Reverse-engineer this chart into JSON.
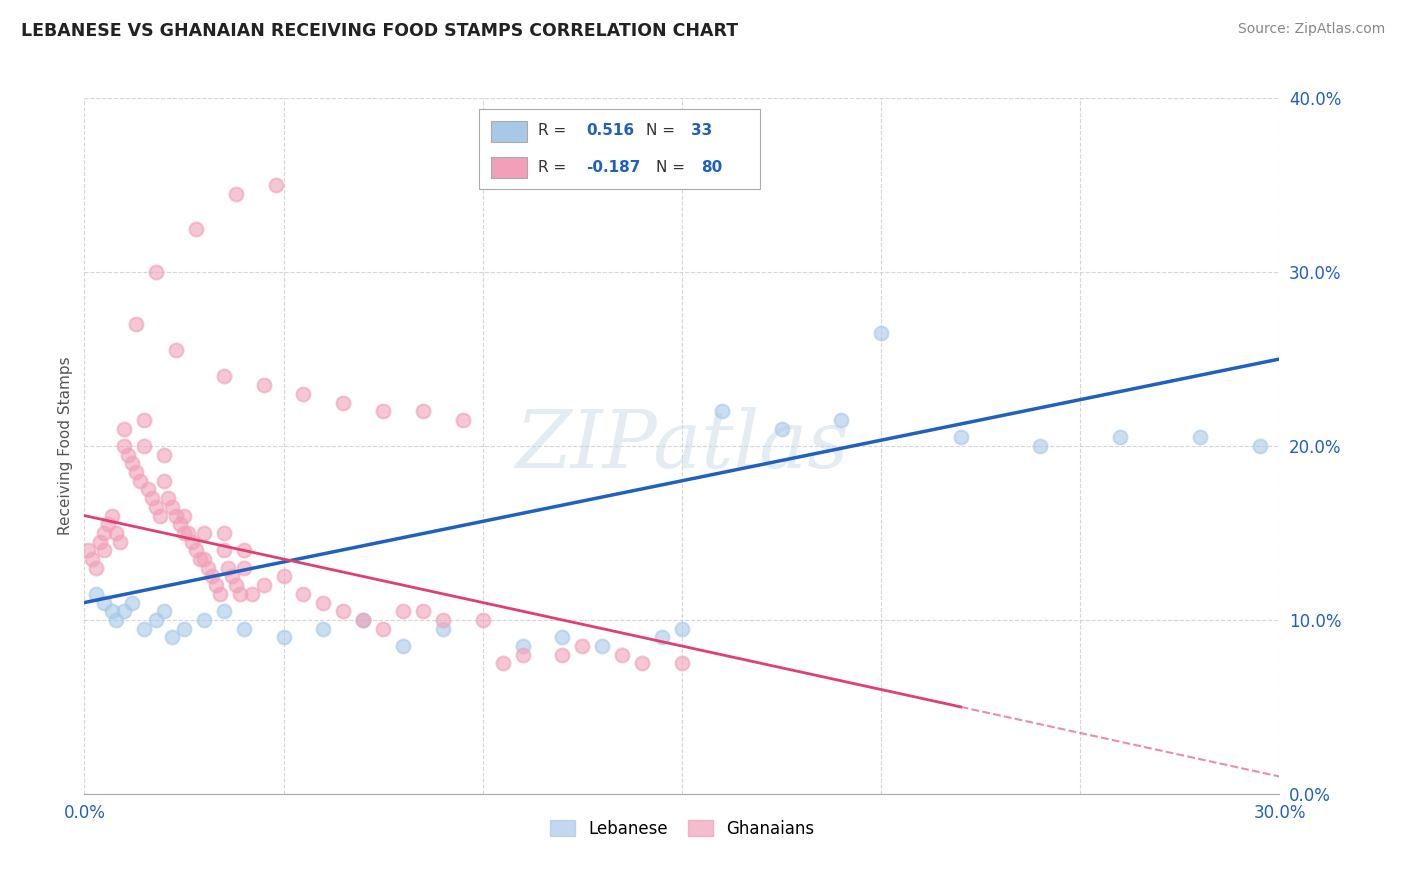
{
  "title": "LEBANESE VS GHANAIAN RECEIVING FOOD STAMPS CORRELATION CHART",
  "source_text": "Source: ZipAtlas.com",
  "ylabel": "Receiving Food Stamps",
  "xlim": [
    0.0,
    30.0
  ],
  "ylim": [
    0.0,
    40.0
  ],
  "ytick_values": [
    0.0,
    10.0,
    20.0,
    30.0,
    40.0
  ],
  "xtick_values": [
    0.0,
    5.0,
    10.0,
    15.0,
    20.0,
    25.0,
    30.0
  ],
  "blue_color": "#a8c8e8",
  "pink_color": "#f0a0b8",
  "blue_line_color": "#2060c0",
  "pink_line_color": "#e04070",
  "watermark": "ZIPatlas",
  "blue_x": [
    0.3,
    0.5,
    0.7,
    0.8,
    1.0,
    1.2,
    1.5,
    1.8,
    2.0,
    2.2,
    2.5,
    3.0,
    3.5,
    4.0,
    5.0,
    6.0,
    7.0,
    8.0,
    9.0,
    11.0,
    12.0,
    13.0,
    14.5,
    15.0,
    16.0,
    17.5,
    19.0,
    22.0,
    24.0,
    26.0,
    28.0,
    29.5,
    20.0
  ],
  "blue_y": [
    11.5,
    11.0,
    10.5,
    10.0,
    10.5,
    11.0,
    9.5,
    10.0,
    10.5,
    9.0,
    9.5,
    10.0,
    10.5,
    9.5,
    9.0,
    9.5,
    10.0,
    8.5,
    9.5,
    8.5,
    9.0,
    8.5,
    9.0,
    9.5,
    22.0,
    21.0,
    21.5,
    20.5,
    20.0,
    20.5,
    20.5,
    20.0,
    26.5
  ],
  "pink_x": [
    0.1,
    0.2,
    0.3,
    0.4,
    0.5,
    0.5,
    0.6,
    0.7,
    0.8,
    0.9,
    1.0,
    1.0,
    1.1,
    1.2,
    1.3,
    1.4,
    1.5,
    1.5,
    1.6,
    1.7,
    1.8,
    1.9,
    2.0,
    2.0,
    2.1,
    2.2,
    2.3,
    2.4,
    2.5,
    2.5,
    2.6,
    2.7,
    2.8,
    2.9,
    3.0,
    3.0,
    3.1,
    3.2,
    3.3,
    3.4,
    3.5,
    3.5,
    3.6,
    3.7,
    3.8,
    3.9,
    4.0,
    4.0,
    4.2,
    4.5,
    5.0,
    5.5,
    6.0,
    6.5,
    7.0,
    7.5,
    8.0,
    8.5,
    9.0,
    10.0,
    11.0,
    12.5,
    14.0,
    1.3,
    2.3,
    3.5,
    4.5,
    5.5,
    6.5,
    7.5,
    8.5,
    9.5,
    10.5,
    1.8,
    2.8,
    3.8,
    4.8,
    12.0,
    13.5,
    15.0
  ],
  "pink_y": [
    14.0,
    13.5,
    13.0,
    14.5,
    14.0,
    15.0,
    15.5,
    16.0,
    15.0,
    14.5,
    20.0,
    21.0,
    19.5,
    19.0,
    18.5,
    18.0,
    20.0,
    21.5,
    17.5,
    17.0,
    16.5,
    16.0,
    18.0,
    19.5,
    17.0,
    16.5,
    16.0,
    15.5,
    15.0,
    16.0,
    15.0,
    14.5,
    14.0,
    13.5,
    13.5,
    15.0,
    13.0,
    12.5,
    12.0,
    11.5,
    14.0,
    15.0,
    13.0,
    12.5,
    12.0,
    11.5,
    13.0,
    14.0,
    11.5,
    12.0,
    12.5,
    11.5,
    11.0,
    10.5,
    10.0,
    9.5,
    10.5,
    10.5,
    10.0,
    10.0,
    8.0,
    8.5,
    7.5,
    27.0,
    25.5,
    24.0,
    23.5,
    23.0,
    22.5,
    22.0,
    22.0,
    21.5,
    7.5,
    30.0,
    32.5,
    34.5,
    35.0,
    8.0,
    8.0,
    7.5
  ],
  "blue_trend_x0": 0.0,
  "blue_trend_y0": 11.0,
  "blue_trend_x1": 30.0,
  "blue_trend_y1": 25.0,
  "pink_trend_x0": 0.0,
  "pink_trend_y0": 16.0,
  "pink_trend_x1": 22.0,
  "pink_trend_y1": 5.0
}
